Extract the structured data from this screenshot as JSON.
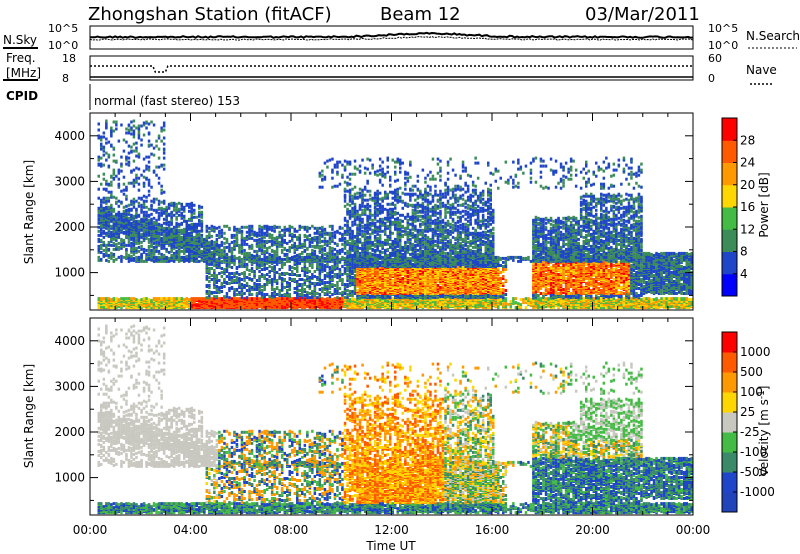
{
  "header": {
    "station": "Zhongshan Station (fitACF)",
    "beam": "Beam 12",
    "date": "03/Mar/2011"
  },
  "noise_panel": {
    "left_label": "N.Sky",
    "right_label": "N.Search",
    "left_ticks": [
      "10^5",
      "10^0"
    ],
    "right_ticks": [
      "10^5",
      "10^0"
    ]
  },
  "freq_panel": {
    "left_label_line1": "Freq.",
    "left_label_line2": "[MHz]",
    "left_ticks": [
      "18",
      "8"
    ],
    "right_label": "Nave",
    "right_ticks": [
      "60",
      "0"
    ]
  },
  "cpid": {
    "label": "CPID",
    "program": "normal (fast stereo) 153"
  },
  "chart_data": [
    {
      "type": "heatmap",
      "name": "power",
      "ylabel": "Slant Range [km]",
      "yticks": [
        "4000",
        "3000",
        "2000",
        "1000"
      ],
      "ylim": [
        180,
        4500
      ],
      "xlim": [
        0,
        24
      ],
      "colorbar_label": "Power [dB]",
      "colorbar_ticks": [
        "28",
        "24",
        "20",
        "16",
        "12",
        "8",
        "4"
      ],
      "colorbar_colors": [
        "#0000ff",
        "#1f45c8",
        "#3c8c5a",
        "#44bb44",
        "#ffd700",
        "#ff9900",
        "#ff5a00",
        "#ff0000"
      ]
    },
    {
      "type": "heatmap",
      "name": "velocity",
      "ylabel": "Slant Range [km]",
      "yticks": [
        "4000",
        "3000",
        "2000",
        "1000"
      ],
      "ylim": [
        180,
        4500
      ],
      "xlim": [
        0,
        24
      ],
      "colorbar_label": "Velocity [m s",
      "colorbar_label_sup": "-1",
      "colorbar_ticks": [
        "1000",
        "500",
        "100",
        "25",
        "-25",
        "-100",
        "-500",
        "-1000"
      ],
      "colorbar_colors": [
        "#2244bb",
        "#1f45c8",
        "#3a8a6a",
        "#44bb44",
        "#c8c8c0",
        "#ffd700",
        "#ff9900",
        "#ff5a00",
        "#ff0000"
      ]
    }
  ],
  "x_axis": {
    "ticks": [
      "00:00",
      "04:00",
      "08:00",
      "12:00",
      "16:00",
      "20:00",
      "00:00"
    ],
    "label": "Time UT"
  }
}
